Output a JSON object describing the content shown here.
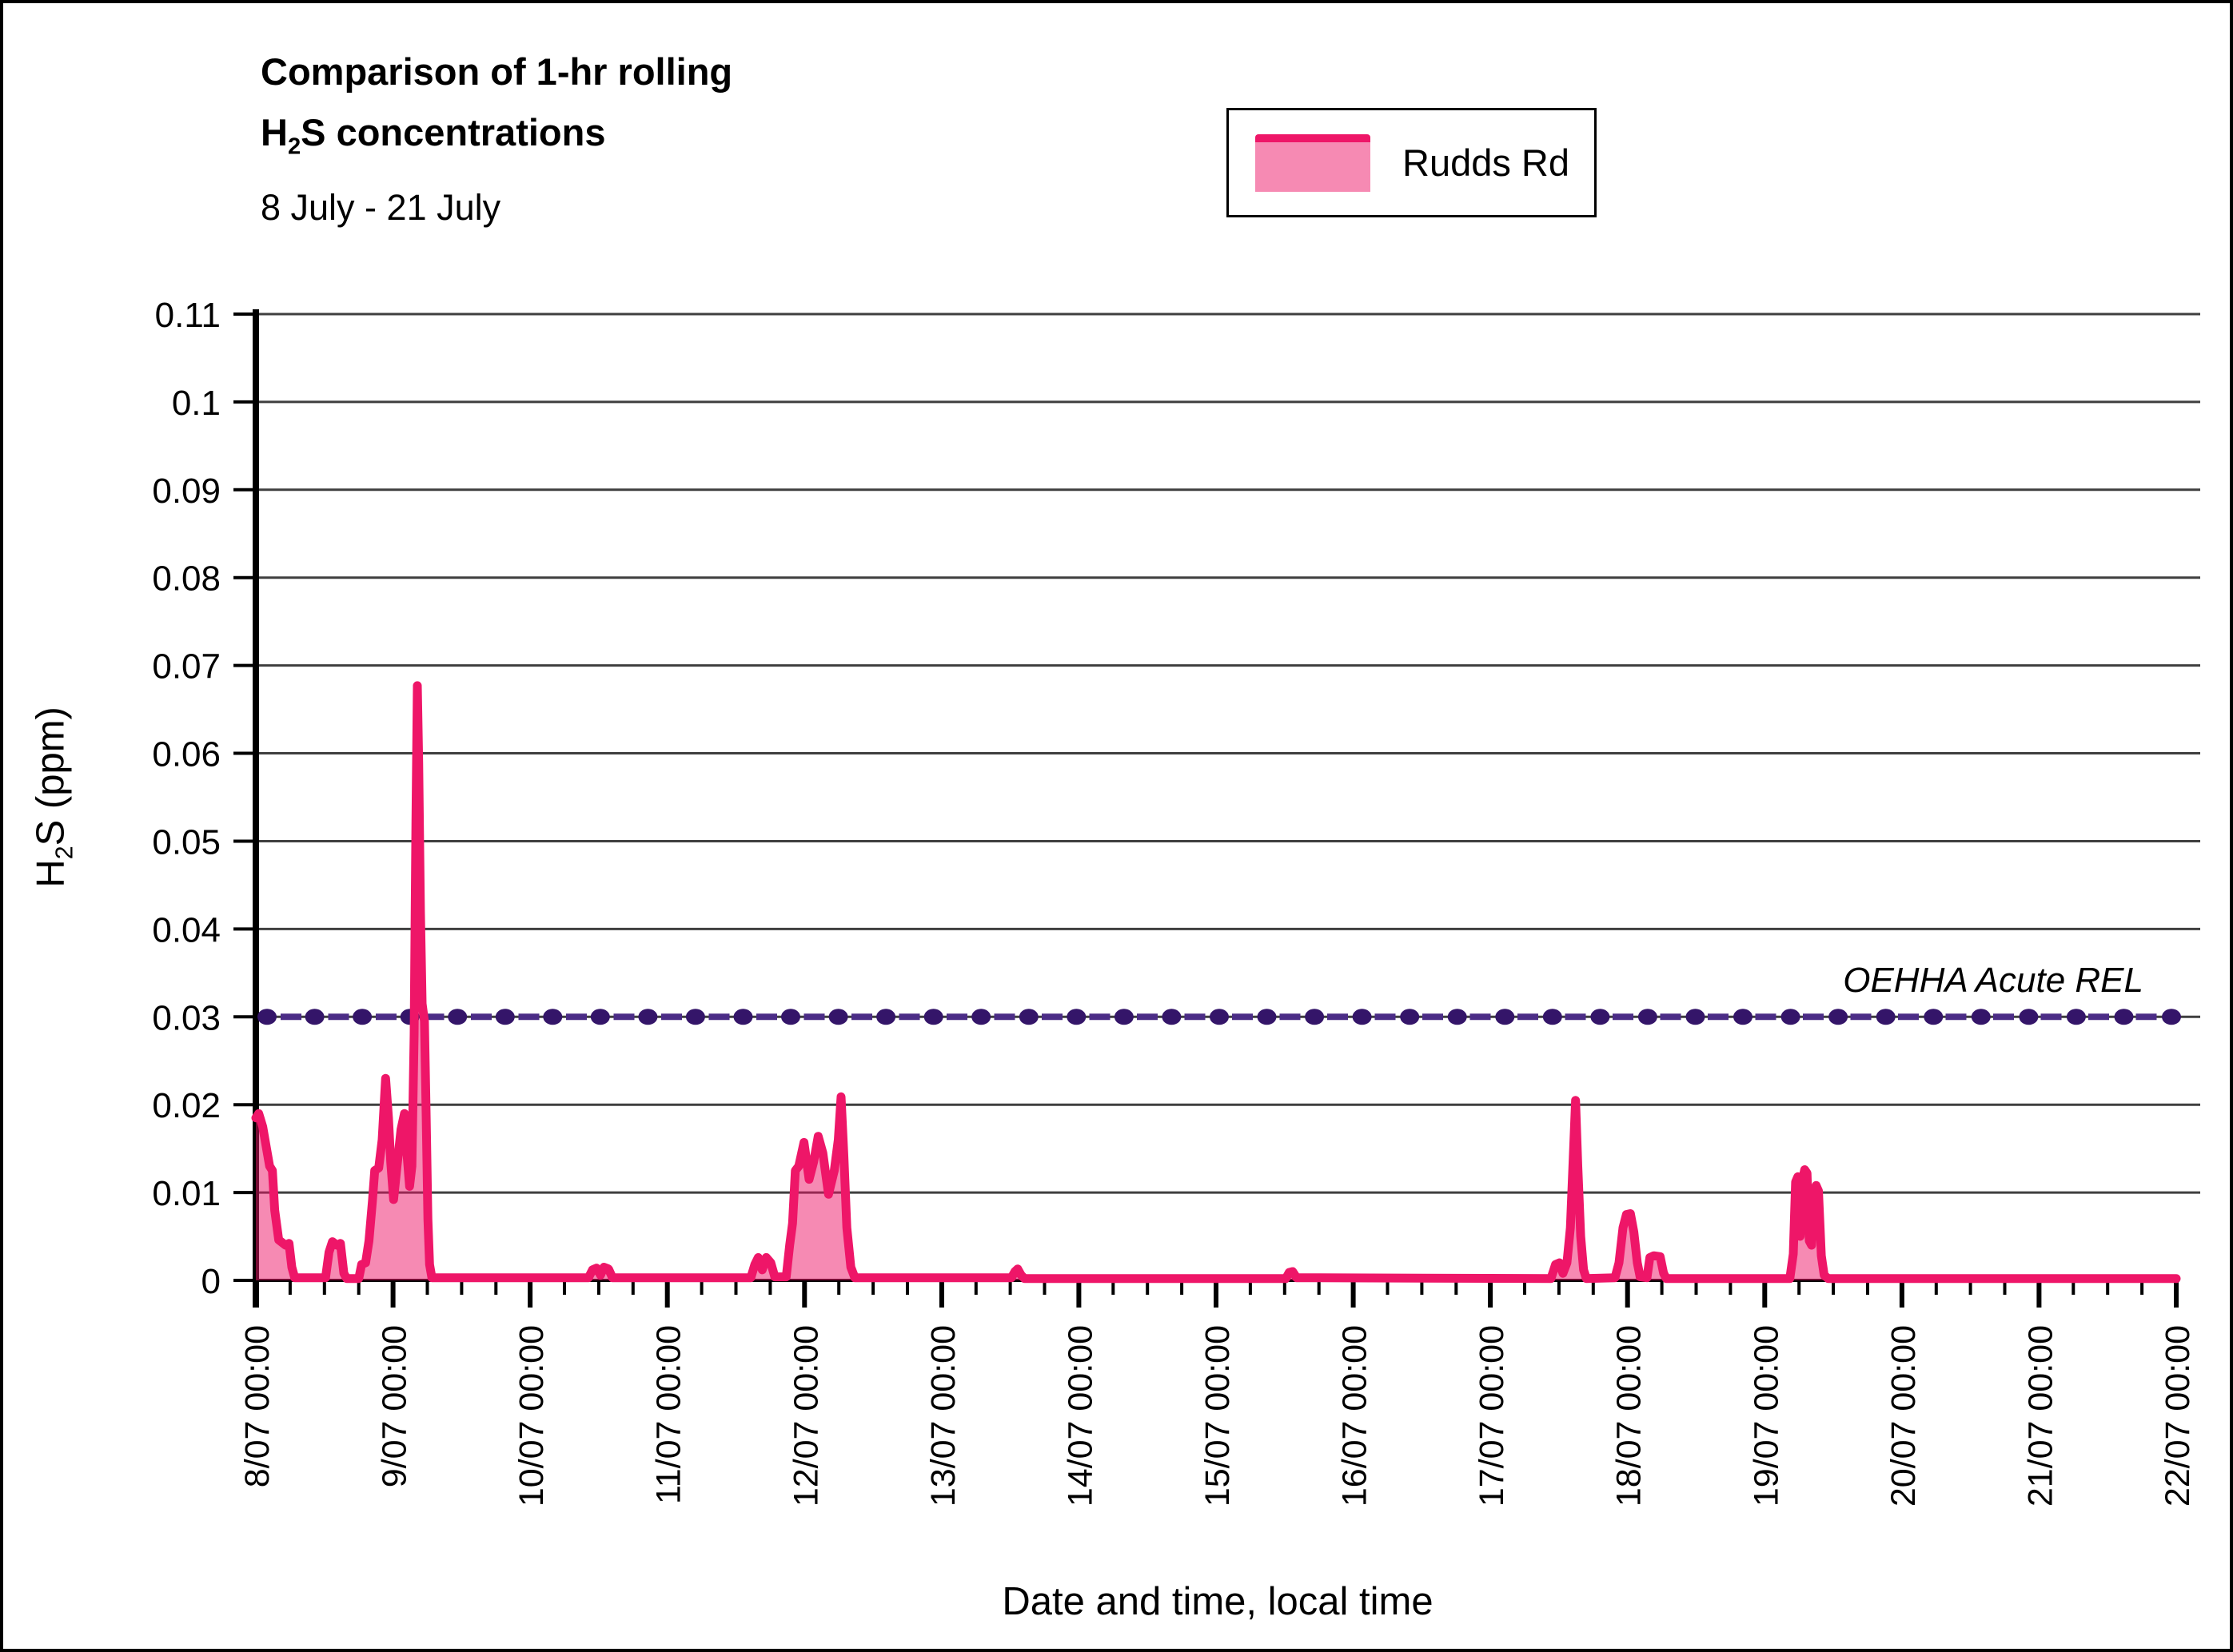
{
  "header": {
    "title_line1": "Comparison of 1-hr rolling",
    "title_line2_pre": "H",
    "title_line2_sub": "2",
    "title_line2_post": "S concentrations",
    "subtitle": "8 July - 21 July"
  },
  "legend": {
    "series_label": "Rudds Rd"
  },
  "axes": {
    "x_title": "Date and time, local time",
    "y_title_pre": "H",
    "y_title_sub": "2",
    "y_title_post": "S (ppm)"
  },
  "annotation": {
    "ref_label": "OEHHA Acute REL"
  },
  "chart_data": {
    "type": "area",
    "title": "Comparison of 1-hr rolling H2S concentrations",
    "subtitle": "8 July - 21 July",
    "xlabel": "Date and time, local time",
    "ylabel": "H2S (ppm)",
    "ylim": [
      0,
      0.11
    ],
    "xlim_hours": [
      0,
      336
    ],
    "x_unit": "hours since 8/07 00:00",
    "minor_tick_hours": 6,
    "grid": true,
    "legend_position": "top-right-inside",
    "colors": {
      "line": "#EE1668",
      "fill": "rgba(238,22,104,0.5)",
      "marker": "#341569",
      "dash": "#4B2C86",
      "gridline": "#3f3f3f"
    },
    "y_ticks": [
      {
        "value": 0,
        "label": "0"
      },
      {
        "value": 0.01,
        "label": "0.01"
      },
      {
        "value": 0.02,
        "label": "0.02"
      },
      {
        "value": 0.03,
        "label": "0.03"
      },
      {
        "value": 0.04,
        "label": "0.04"
      },
      {
        "value": 0.05,
        "label": "0.05"
      },
      {
        "value": 0.06,
        "label": "0.06"
      },
      {
        "value": 0.07,
        "label": "0.07"
      },
      {
        "value": 0.08,
        "label": "0.08"
      },
      {
        "value": 0.09,
        "label": "0.09"
      },
      {
        "value": 0.1,
        "label": "0.1"
      },
      {
        "value": 0.11,
        "label": "0.11"
      }
    ],
    "x_tick_labels": [
      "8/07 00:00",
      "9/07 00:00",
      "10/07 00:00",
      "11/07 00:00",
      "12/07 00:00",
      "13/07 00:00",
      "14/07 00:00",
      "15/07 00:00",
      "16/07 00:00",
      "17/07 00:00",
      "18/07 00:00",
      "19/07 00:00",
      "20/07 00:00",
      "21/07 00:00",
      "22/07 00:00"
    ],
    "reference_line": {
      "label": "OEHHA Acute REL",
      "value": 0.03,
      "style": "dashed-with-circle-markers"
    },
    "series": [
      {
        "name": "Rudds Rd",
        "points": [
          [
            0,
            0.0185
          ],
          [
            0.5,
            0.019
          ],
          [
            1.2,
            0.0175
          ],
          [
            2.4,
            0.013
          ],
          [
            2.9,
            0.0125
          ],
          [
            3.3,
            0.008
          ],
          [
            4.0,
            0.0046
          ],
          [
            5.2,
            0.004
          ],
          [
            5.8,
            0.0042
          ],
          [
            6.3,
            0.0015
          ],
          [
            6.8,
            0.0003
          ],
          [
            12.2,
            0.0003
          ],
          [
            12.8,
            0.0032
          ],
          [
            13.4,
            0.0044
          ],
          [
            14.2,
            0.004
          ],
          [
            14.8,
            0.0042
          ],
          [
            15.4,
            0.0008
          ],
          [
            15.9,
            0.0002
          ],
          [
            18.0,
            0.0002
          ],
          [
            18.5,
            0.0018
          ],
          [
            19.2,
            0.002
          ],
          [
            19.8,
            0.0045
          ],
          [
            20.4,
            0.009
          ],
          [
            20.8,
            0.0125
          ],
          [
            21.5,
            0.0128
          ],
          [
            22.1,
            0.016
          ],
          [
            22.7,
            0.023
          ],
          [
            23.2,
            0.0185
          ],
          [
            23.6,
            0.0135
          ],
          [
            24.1,
            0.0092
          ],
          [
            24.7,
            0.013
          ],
          [
            25.4,
            0.0172
          ],
          [
            26.0,
            0.019
          ],
          [
            26.4,
            0.0148
          ],
          [
            26.9,
            0.0107
          ],
          [
            27.3,
            0.013
          ],
          [
            27.7,
            0.028
          ],
          [
            28.0,
            0.052
          ],
          [
            28.25,
            0.0677
          ],
          [
            28.5,
            0.059
          ],
          [
            28.8,
            0.042
          ],
          [
            29.1,
            0.0315
          ],
          [
            29.5,
            0.0295
          ],
          [
            29.8,
            0.019
          ],
          [
            30.1,
            0.007
          ],
          [
            30.4,
            0.0018
          ],
          [
            30.8,
            0.0003
          ],
          [
            58.2,
            0.0003
          ],
          [
            58.9,
            0.0012
          ],
          [
            59.6,
            0.0014
          ],
          [
            60.3,
            0.0006
          ],
          [
            60.9,
            0.0015
          ],
          [
            61.7,
            0.0013
          ],
          [
            62.4,
            0.0003
          ],
          [
            86.6,
            0.0003
          ],
          [
            87.3,
            0.0018
          ],
          [
            87.9,
            0.0026
          ],
          [
            88.6,
            0.0012
          ],
          [
            89.3,
            0.0026
          ],
          [
            90.1,
            0.002
          ],
          [
            90.8,
            0.0004
          ],
          [
            92.8,
            0.0004
          ],
          [
            93.4,
            0.004
          ],
          [
            93.9,
            0.0065
          ],
          [
            94.4,
            0.0125
          ],
          [
            95.0,
            0.013
          ],
          [
            95.9,
            0.0157
          ],
          [
            96.8,
            0.0115
          ],
          [
            97.6,
            0.0135
          ],
          [
            98.4,
            0.0164
          ],
          [
            99.2,
            0.0145
          ],
          [
            100.2,
            0.0098
          ],
          [
            101.2,
            0.0125
          ],
          [
            101.9,
            0.016
          ],
          [
            102.4,
            0.0209
          ],
          [
            102.9,
            0.014
          ],
          [
            103.4,
            0.006
          ],
          [
            104.1,
            0.0015
          ],
          [
            104.8,
            0.0003
          ],
          [
            132.2,
            0.0003
          ],
          [
            132.8,
            0.001
          ],
          [
            133.3,
            0.0013
          ],
          [
            133.9,
            0.0006
          ],
          [
            134.5,
            0.0002
          ],
          [
            180.2,
            0.0002
          ],
          [
            180.8,
            0.0009
          ],
          [
            181.4,
            0.001
          ],
          [
            182.1,
            0.0003
          ],
          [
            226.6,
            0.0002
          ],
          [
            227.4,
            0.0018
          ],
          [
            228.1,
            0.002
          ],
          [
            228.7,
            0.0008
          ],
          [
            229.4,
            0.002
          ],
          [
            230.0,
            0.006
          ],
          [
            230.5,
            0.014
          ],
          [
            230.9,
            0.0205
          ],
          [
            231.3,
            0.013
          ],
          [
            231.8,
            0.005
          ],
          [
            232.3,
            0.0012
          ],
          [
            232.8,
            0.0002
          ],
          [
            237.8,
            0.0003
          ],
          [
            238.5,
            0.002
          ],
          [
            239.2,
            0.006
          ],
          [
            239.8,
            0.0075
          ],
          [
            240.5,
            0.0076
          ],
          [
            241.1,
            0.0055
          ],
          [
            241.7,
            0.002
          ],
          [
            242.2,
            0.0004
          ],
          [
            243.4,
            0.0003
          ],
          [
            243.9,
            0.0026
          ],
          [
            244.6,
            0.0028
          ],
          [
            245.7,
            0.0027
          ],
          [
            246.3,
            0.0008
          ],
          [
            246.8,
            0.0002
          ],
          [
            268.4,
            0.0002
          ],
          [
            269.0,
            0.003
          ],
          [
            269.4,
            0.0112
          ],
          [
            269.8,
            0.0118
          ],
          [
            270.2,
            0.005
          ],
          [
            270.6,
            0.0115
          ],
          [
            271.0,
            0.0126
          ],
          [
            271.4,
            0.0122
          ],
          [
            271.8,
            0.0045
          ],
          [
            272.2,
            0.004
          ],
          [
            272.6,
            0.01
          ],
          [
            273.0,
            0.0108
          ],
          [
            273.4,
            0.0102
          ],
          [
            273.9,
            0.0028
          ],
          [
            274.4,
            0.0006
          ],
          [
            275.1,
            0.0002
          ],
          [
            336,
            0.0002
          ]
        ]
      }
    ]
  }
}
